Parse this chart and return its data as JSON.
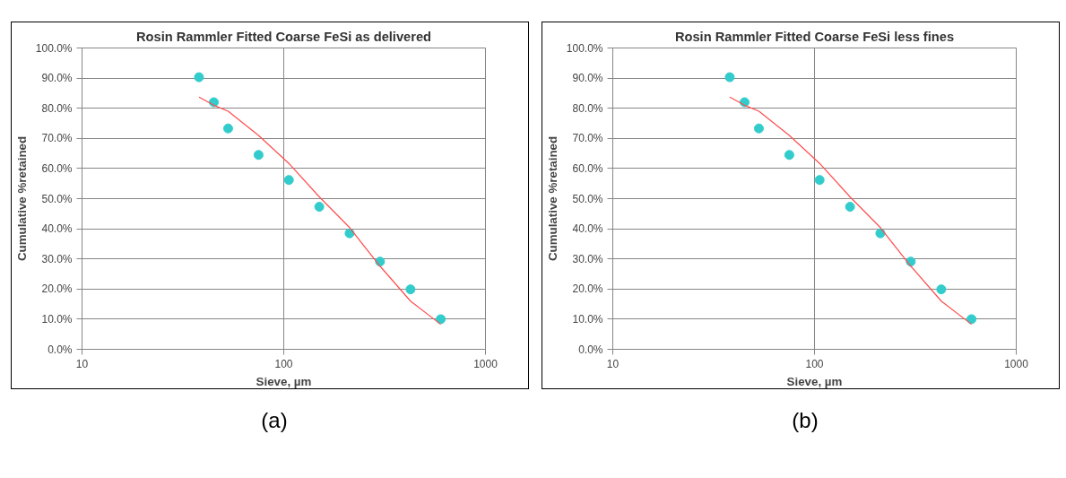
{
  "chart_data": [
    {
      "type": "scatter",
      "title": "Rosin Rammler Fitted Coarse FeSi as delivered",
      "xlabel": "Sieve, µm",
      "ylabel": "Cumulative %retained",
      "annotations": [
        "(a)"
      ],
      "log": "x",
      "grid": true,
      "xlim": [
        10,
        1000
      ],
      "xticks": [
        10,
        100,
        1000
      ],
      "ylim": [
        0,
        100
      ],
      "yticks": [
        {
          "value": 0,
          "label": "0.0%"
        },
        {
          "value": 10,
          "label": "10.0%"
        },
        {
          "value": 20,
          "label": "20.0%"
        },
        {
          "value": 30,
          "label": "30.0%"
        },
        {
          "value": 40,
          "label": "40.0%"
        },
        {
          "value": 50,
          "label": "50.0%"
        },
        {
          "value": 60,
          "label": "60.0%"
        },
        {
          "value": 70,
          "label": "70.0%"
        },
        {
          "value": 80,
          "label": "80.0%"
        },
        {
          "value": 90,
          "label": "90.0%"
        },
        {
          "value": 100,
          "label": "100.0%"
        }
      ],
      "x": [
        38,
        45,
        53,
        75,
        106,
        150,
        212,
        300,
        425,
        600
      ],
      "series": [
        {
          "color": "#33cccc",
          "values": [
            90.3,
            82,
            73.3,
            64.5,
            56.2,
            47.3,
            38.5,
            29.1,
            19.9,
            10
          ]
        },
        {
          "type": "line",
          "color": "#ff4d4d",
          "values": [
            83.7,
            81,
            79,
            71,
            61.7,
            50.6,
            40.4,
            27.6,
            16,
            8.3
          ]
        }
      ]
    },
    {
      "type": "scatter",
      "title": "Rosin Rammler Fitted Coarse FeSi less fines",
      "xlabel": "Sieve, µm",
      "ylabel": "Cumulative %retained",
      "annotations": [
        "(b)"
      ],
      "log": "x",
      "grid": true,
      "xlim": [
        10,
        1000
      ],
      "xticks": [
        10,
        100,
        1000
      ],
      "ylim": [
        0,
        100
      ],
      "yticks": [
        {
          "value": 0,
          "label": "0.0%"
        },
        {
          "value": 10,
          "label": "10.0%"
        },
        {
          "value": 20,
          "label": "20.0%"
        },
        {
          "value": 30,
          "label": "30.0%"
        },
        {
          "value": 40,
          "label": "40.0%"
        },
        {
          "value": 50,
          "label": "50.0%"
        },
        {
          "value": 60,
          "label": "60.0%"
        },
        {
          "value": 70,
          "label": "70.0%"
        },
        {
          "value": 80,
          "label": "80.0%"
        },
        {
          "value": 90,
          "label": "90.0%"
        },
        {
          "value": 100,
          "label": "100.0%"
        }
      ],
      "x": [
        38,
        45,
        53,
        75,
        106,
        150,
        212,
        300,
        425,
        600
      ],
      "series": [
        {
          "color": "#33cccc",
          "values": [
            90.3,
            82,
            73.3,
            64.5,
            56.2,
            47.3,
            38.5,
            29.1,
            19.9,
            10
          ]
        },
        {
          "type": "line",
          "color": "#ff4d4d",
          "values": [
            83.7,
            81,
            79,
            71,
            61.7,
            50.6,
            40.4,
            27.6,
            16,
            8.3
          ]
        }
      ]
    }
  ]
}
